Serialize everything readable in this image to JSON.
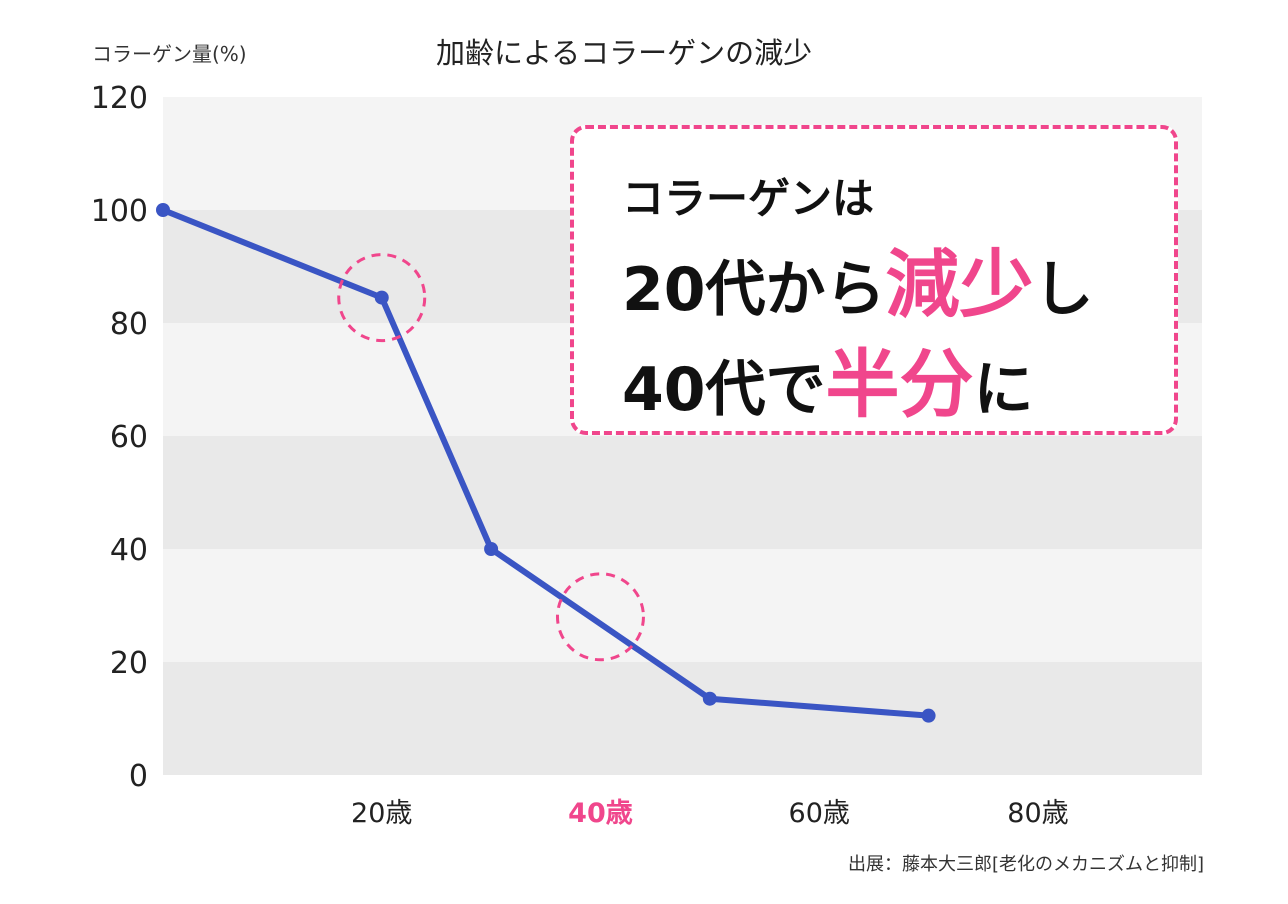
{
  "chart_data": {
    "type": "line",
    "title": "加齢によるコラーゲンの減少",
    "ylabel": "コラーゲン量(%)",
    "xlabel": "",
    "ylim": [
      0,
      120
    ],
    "yticks": [
      0,
      20,
      40,
      60,
      80,
      100,
      120
    ],
    "xlim": [
      0,
      95
    ],
    "xticks": [
      {
        "value": 20,
        "label": "20歳",
        "highlight": false
      },
      {
        "value": 40,
        "label": "40歳",
        "highlight": true
      },
      {
        "value": 60,
        "label": "60歳",
        "highlight": false
      },
      {
        "value": 80,
        "label": "80歳",
        "highlight": false
      }
    ],
    "series": [
      {
        "x": [
          0,
          20,
          30,
          50,
          70
        ],
        "values": [
          100,
          84.5,
          40,
          13.5,
          10.5
        ]
      }
    ],
    "marked_points": [
      {
        "x": 20,
        "y": 84.5
      },
      {
        "x": 40,
        "y": 28
      }
    ],
    "grid": "alternating horizontal bands",
    "colors": {
      "line": "#3a55c4",
      "highlight": "#f0468c",
      "band_light": "#f4f4f4",
      "band_dark": "#e9e9e9"
    }
  },
  "callout": {
    "line1": "コラーゲンは",
    "line2_pre": "20代から",
    "line2_hl": "減少",
    "line2_post": "し",
    "line3_pre": "40代で",
    "line3_hl": "半分",
    "line3_post": "に"
  },
  "source": "出展：藤本大三郎[老化のメカニズムと抑制]"
}
